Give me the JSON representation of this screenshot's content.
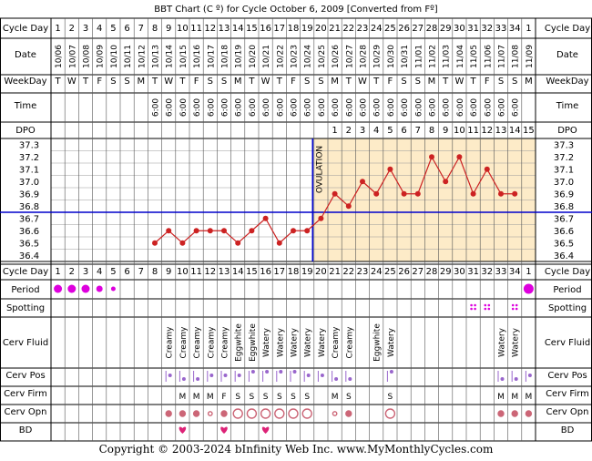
{
  "title": "BBT Chart (C º) for Cycle October 6, 2009  [Converted from Fº]",
  "footer": "Copyright © 2003-2024 bInfinity Web Inc.     www.MyMonthlyCycles.com",
  "ovulation_label": "OVULATION",
  "row_labels": {
    "cycle_day": "Cycle Day",
    "date": "Date",
    "weekday": "WeekDay",
    "time": "Time",
    "dpo": "DPO",
    "period": "Period",
    "spotting": "Spotting",
    "cerv_fluid": "Cerv Fluid",
    "cerv_pos": "Cerv Pos",
    "cerv_firm": "Cerv Firm",
    "cerv_opn": "Cerv Opn",
    "bd": "BD"
  },
  "colors": {
    "grid": "#000000",
    "post_ovulation_fill": "#fdebc8",
    "temp_line": "#cc2222",
    "coverline": "#0000cc",
    "ovulation_line": "#0000cc",
    "period": "#dd00dd",
    "bd_heart": "#dd2277",
    "pos_marker": "#9966cc",
    "opn_marker": "#cc6677"
  },
  "cycle_days": [
    "1",
    "2",
    "3",
    "4",
    "5",
    "6",
    "7",
    "8",
    "9",
    "10",
    "11",
    "12",
    "13",
    "14",
    "15",
    "16",
    "17",
    "18",
    "19",
    "20",
    "21",
    "22",
    "23",
    "24",
    "25",
    "26",
    "27",
    "28",
    "29",
    "30",
    "31",
    "32",
    "33",
    "34",
    "1"
  ],
  "dates": [
    "10/06",
    "10/07",
    "10/08",
    "10/09",
    "10/10",
    "10/11",
    "10/12",
    "10/13",
    "10/14",
    "10/15",
    "10/16",
    "10/17",
    "10/18",
    "10/19",
    "10/20",
    "10/21",
    "10/22",
    "10/23",
    "10/24",
    "10/25",
    "10/26",
    "10/27",
    "10/28",
    "10/29",
    "10/30",
    "10/31",
    "11/01",
    "11/02",
    "11/03",
    "11/04",
    "11/05",
    "11/06",
    "11/07",
    "11/08",
    "11/09"
  ],
  "weekdays": [
    "T",
    "W",
    "T",
    "F",
    "S",
    "S",
    "M",
    "T",
    "W",
    "T",
    "F",
    "S",
    "S",
    "M",
    "T",
    "W",
    "T",
    "F",
    "S",
    "S",
    "M",
    "T",
    "W",
    "T",
    "F",
    "S",
    "S",
    "M",
    "T",
    "W",
    "T",
    "F",
    "S",
    "S",
    "M"
  ],
  "times": [
    "",
    "",
    "",
    "",
    "",
    "",
    "",
    "6:00",
    "6:00",
    "6:00",
    "6:00",
    "6:00",
    "6:00",
    "6:00",
    "6:00",
    "6:00",
    "6:00",
    "6:00",
    "6:00",
    "6:00",
    "6:00",
    "6:00",
    "6:00",
    "6:00",
    "6:00",
    "6:00",
    "6:00",
    "6:00",
    "6:00",
    "6:00",
    "6:00",
    "6:00",
    "6:00",
    "6:00",
    ""
  ],
  "dpo": [
    "",
    "",
    "",
    "",
    "",
    "",
    "",
    "",
    "",
    "",
    "",
    "",
    "",
    "",
    "",
    "",
    "",
    "",
    "",
    "",
    "1",
    "2",
    "3",
    "4",
    "5",
    "6",
    "7",
    "8",
    "9",
    "10",
    "11",
    "12",
    "13",
    "14",
    "15"
  ],
  "temp_axis_labels": [
    "37.3",
    "37.2",
    "37.1",
    "37.0",
    "36.9",
    "36.8",
    "36.7",
    "36.6",
    "36.5",
    "36.4"
  ],
  "chart_data": {
    "type": "line",
    "title": "BBT Chart (C º) for Cycle October 6, 2009  [Converted from Fº]",
    "x_label": "Cycle Day",
    "y_label": "",
    "ylim": [
      36.4,
      37.3
    ],
    "coverline": 36.75,
    "ovulation_day": 19,
    "x": [
      8,
      9,
      10,
      11,
      12,
      13,
      14,
      15,
      16,
      17,
      18,
      19,
      20,
      21,
      22,
      23,
      24,
      25,
      26,
      27,
      28,
      29,
      30,
      31,
      32,
      33,
      34
    ],
    "series": [
      {
        "name": "",
        "values": [
          36.5,
          36.6,
          36.5,
          36.6,
          36.6,
          36.6,
          36.5,
          36.6,
          36.7,
          36.5,
          36.6,
          36.6,
          36.7,
          36.9,
          36.8,
          37.0,
          36.9,
          37.1,
          36.9,
          36.9,
          37.2,
          37.0,
          37.2,
          36.9,
          37.1,
          36.9,
          36.9
        ]
      }
    ]
  },
  "period": [
    "heavy",
    "heavy",
    "heavy",
    "medium",
    "light",
    "",
    "",
    "",
    "",
    "",
    "",
    "",
    "",
    "",
    "",
    "",
    "",
    "",
    "",
    "",
    "",
    "",
    "",
    "",
    "",
    "",
    "",
    "",
    "",
    "",
    "",
    "",
    "",
    "",
    "heavy"
  ],
  "spotting_days": [
    31,
    32,
    34
  ],
  "cerv_fluid": [
    "",
    "",
    "",
    "",
    "",
    "",
    "",
    "",
    "Creamy",
    "Creamy",
    "Creamy",
    "Creamy",
    "Creamy",
    "Eggwhite",
    "Eggwhite",
    "Watery",
    "Watery",
    "Watery",
    "Watery",
    "Watery",
    "Creamy",
    "Creamy",
    "",
    "Eggwhite",
    "Watery",
    "",
    "",
    "",
    "",
    "",
    "",
    "",
    "Watery",
    "Watery",
    ""
  ],
  "cerv_pos": [
    "",
    "",
    "",
    "",
    "",
    "",
    "",
    "",
    "mid",
    "low",
    "low",
    "mid",
    "mid",
    "mid",
    "high",
    "high",
    "high",
    "high",
    "mid",
    "mid",
    "low",
    "low",
    "",
    "",
    "high",
    "",
    "",
    "",
    "",
    "",
    "",
    "",
    "low",
    "low",
    "mid"
  ],
  "cerv_firm": [
    "",
    "",
    "",
    "",
    "",
    "",
    "",
    "",
    "",
    "M",
    "M",
    "M",
    "F",
    "S",
    "S",
    "S",
    "S",
    "S",
    "S",
    "",
    "M",
    "S",
    "",
    "",
    "S",
    "",
    "",
    "",
    "",
    "",
    "",
    "",
    "M",
    "M",
    "M"
  ],
  "cerv_opn": [
    "",
    "",
    "",
    "",
    "",
    "",
    "",
    "",
    "medium",
    "medium",
    "medium",
    "small",
    "medium",
    "large",
    "large",
    "large",
    "large",
    "large",
    "large",
    "",
    "small",
    "medium",
    "",
    "",
    "large",
    "",
    "",
    "",
    "",
    "",
    "",
    "",
    "medium",
    "medium",
    "medium"
  ],
  "bd_days": [
    10,
    13,
    16
  ]
}
